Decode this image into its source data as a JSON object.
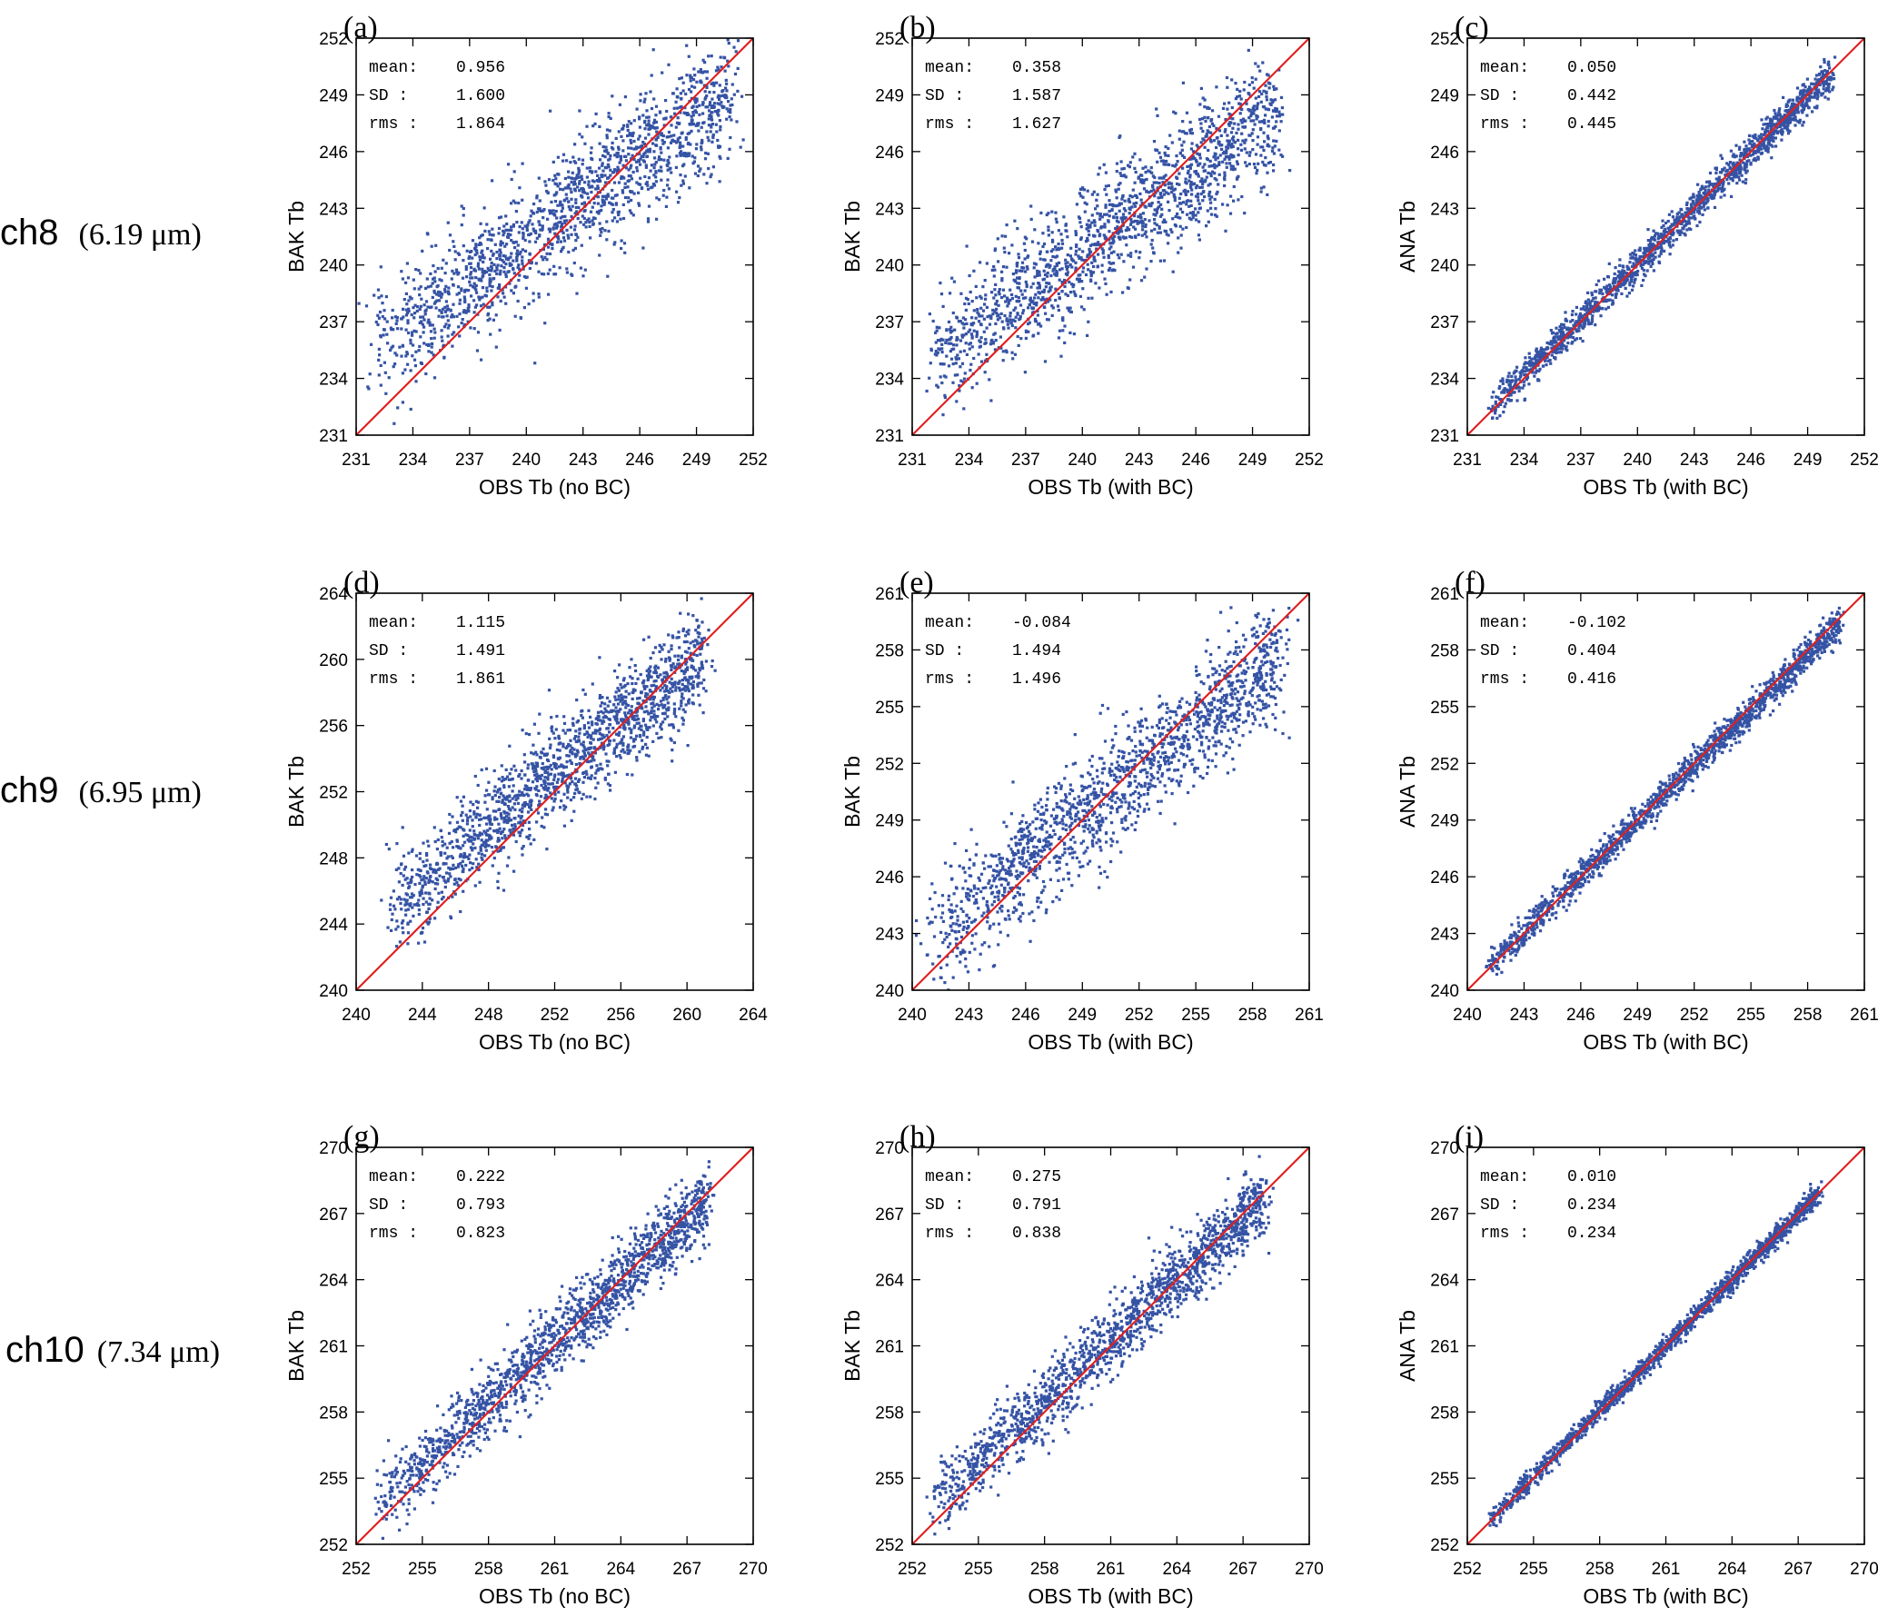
{
  "row_labels": [
    {
      "channel": "ch8",
      "wavelength": "(6.19 μm)"
    },
    {
      "channel": "ch9",
      "wavelength": "(6.95 μm)"
    },
    {
      "channel": "ch10",
      "wavelength": "(7.34 μm)"
    }
  ],
  "colors": {
    "points": "#3553a5",
    "diagonal": "#e02020",
    "axis": "#000000"
  },
  "chart_data": [
    {
      "type": "scatter",
      "panel": "(a)",
      "xlabel": "OBS Tb (no BC)",
      "ylabel": "BAK Tb",
      "xlim": [
        231,
        252
      ],
      "ylim": [
        231,
        252
      ],
      "ticks": [
        231,
        234,
        237,
        240,
        243,
        246,
        249,
        252
      ],
      "stats": [
        {
          "label": "mean:",
          "value": "0.956"
        },
        {
          "label": "SD  :",
          "value": "1.600"
        },
        {
          "label": "rms :",
          "value": "1.864"
        }
      ],
      "cloud": {
        "x_range": [
          232.0,
          250.8
        ],
        "center_line": {
          "slope": 0.72,
          "offset": 0.9
        },
        "spread": 1.6
      },
      "diagonal": [
        [
          231,
          231
        ],
        [
          252,
          252
        ]
      ]
    },
    {
      "type": "scatter",
      "panel": "(b)",
      "xlabel": "OBS Tb (with BC)",
      "ylabel": "BAK Tb",
      "xlim": [
        231,
        252
      ],
      "ylim": [
        231,
        252
      ],
      "ticks": [
        231,
        234,
        237,
        240,
        243,
        246,
        249,
        252
      ],
      "stats": [
        {
          "label": "mean:",
          "value": "0.358"
        },
        {
          "label": "SD  :",
          "value": "1.587"
        },
        {
          "label": "rms :",
          "value": "1.627"
        }
      ],
      "cloud": {
        "x_range": [
          232.0,
          250.3
        ],
        "center_line": {
          "slope": 0.72,
          "offset": 0.3
        },
        "spread": 1.6
      },
      "diagonal": [
        [
          231,
          231
        ],
        [
          252,
          252
        ]
      ]
    },
    {
      "type": "scatter",
      "panel": "(c)",
      "xlabel": "OBS Tb (with BC)",
      "ylabel": "ANA Tb",
      "xlim": [
        231,
        252
      ],
      "ylim": [
        231,
        252
      ],
      "ticks": [
        231,
        234,
        237,
        240,
        243,
        246,
        249,
        252
      ],
      "stats": [
        {
          "label": "mean:",
          "value": "0.050"
        },
        {
          "label": "SD  :",
          "value": "0.442"
        },
        {
          "label": "rms :",
          "value": "0.445"
        }
      ],
      "cloud": {
        "x_range": [
          232.2,
          250.3
        ],
        "center_line": {
          "slope": 0.98,
          "offset": 0.05
        },
        "spread": 0.44
      },
      "diagonal": [
        [
          231,
          231
        ],
        [
          252,
          252
        ]
      ]
    },
    {
      "type": "scatter",
      "panel": "(d)",
      "xlabel": "OBS Tb (no BC)",
      "ylabel": "BAK Tb",
      "xlim": [
        240,
        264
      ],
      "ylim": [
        240,
        264
      ],
      "ticks": [
        240,
        244,
        248,
        252,
        256,
        260,
        264
      ],
      "stats": [
        {
          "label": "mean:",
          "value": "1.115"
        },
        {
          "label": "SD  :",
          "value": "1.491"
        },
        {
          "label": "rms :",
          "value": "1.861"
        }
      ],
      "cloud": {
        "x_range": [
          242.2,
          261.0
        ],
        "center_line": {
          "slope": 0.8,
          "offset": 1.1
        },
        "spread": 1.5
      },
      "diagonal": [
        [
          240,
          240
        ],
        [
          264,
          264
        ]
      ]
    },
    {
      "type": "scatter",
      "panel": "(e)",
      "xlabel": "OBS Tb (with BC)",
      "ylabel": "BAK Tb",
      "xlim": [
        240,
        261
      ],
      "ylim": [
        240,
        261
      ],
      "ticks": [
        240,
        243,
        246,
        249,
        252,
        255,
        258,
        261
      ],
      "stats": [
        {
          "label": "mean:",
          "value": "-0.084"
        },
        {
          "label": "SD  :",
          "value": "1.494"
        },
        {
          "label": "rms :",
          "value": "1.496"
        }
      ],
      "cloud": {
        "x_range": [
          241.0,
          259.5
        ],
        "center_line": {
          "slope": 0.8,
          "offset": -0.08
        },
        "spread": 1.5
      },
      "diagonal": [
        [
          240,
          240
        ],
        [
          261,
          261
        ]
      ]
    },
    {
      "type": "scatter",
      "panel": "(f)",
      "xlabel": "OBS Tb (with BC)",
      "ylabel": "ANA Tb",
      "xlim": [
        240,
        261
      ],
      "ylim": [
        240,
        261
      ],
      "ticks": [
        240,
        243,
        246,
        249,
        252,
        255,
        258,
        261
      ],
      "stats": [
        {
          "label": "mean:",
          "value": "-0.102"
        },
        {
          "label": "SD  :",
          "value": "0.404"
        },
        {
          "label": "rms :",
          "value": "0.416"
        }
      ],
      "cloud": {
        "x_range": [
          241.0,
          259.8
        ],
        "center_line": {
          "slope": 0.98,
          "offset": -0.1
        },
        "spread": 0.4
      },
      "diagonal": [
        [
          240,
          240
        ],
        [
          261,
          261
        ]
      ]
    },
    {
      "type": "scatter",
      "panel": "(g)",
      "xlabel": "OBS Tb (no BC)",
      "ylabel": "BAK Tb",
      "xlim": [
        252,
        270
      ],
      "ylim": [
        252,
        270
      ],
      "ticks": [
        252,
        255,
        258,
        261,
        264,
        267,
        270
      ],
      "stats": [
        {
          "label": "mean:",
          "value": "0.222"
        },
        {
          "label": "SD  :",
          "value": "0.793"
        },
        {
          "label": "rms :",
          "value": "0.823"
        }
      ],
      "cloud": {
        "x_range": [
          253.0,
          268.0
        ],
        "center_line": {
          "slope": 0.92,
          "offset": 0.2
        },
        "spread": 0.8
      },
      "diagonal": [
        [
          252,
          252
        ],
        [
          270,
          270
        ]
      ]
    },
    {
      "type": "scatter",
      "panel": "(h)",
      "xlabel": "OBS Tb (with BC)",
      "ylabel": "BAK Tb",
      "xlim": [
        252,
        270
      ],
      "ylim": [
        252,
        270
      ],
      "ticks": [
        252,
        255,
        258,
        261,
        264,
        267,
        270
      ],
      "stats": [
        {
          "label": "mean:",
          "value": "0.275"
        },
        {
          "label": "SD  :",
          "value": "0.791"
        },
        {
          "label": "rms :",
          "value": "0.838"
        }
      ],
      "cloud": {
        "x_range": [
          253.0,
          268.0
        ],
        "center_line": {
          "slope": 0.92,
          "offset": 0.27
        },
        "spread": 0.8
      },
      "diagonal": [
        [
          252,
          252
        ],
        [
          270,
          270
        ]
      ]
    },
    {
      "type": "scatter",
      "panel": "(i)",
      "xlabel": "OBS Tb (with BC)",
      "ylabel": "ANA Tb",
      "xlim": [
        252,
        270
      ],
      "ylim": [
        252,
        270
      ],
      "ticks": [
        252,
        255,
        258,
        261,
        264,
        267,
        270
      ],
      "stats": [
        {
          "label": "mean:",
          "value": "0.010"
        },
        {
          "label": "SD  :",
          "value": "0.234"
        },
        {
          "label": "rms :",
          "value": "0.234"
        }
      ],
      "cloud": {
        "x_range": [
          253.0,
          268.0
        ],
        "center_line": {
          "slope": 0.99,
          "offset": 0.01
        },
        "spread": 0.23
      },
      "diagonal": [
        [
          252,
          252
        ],
        [
          270,
          270
        ]
      ]
    }
  ]
}
